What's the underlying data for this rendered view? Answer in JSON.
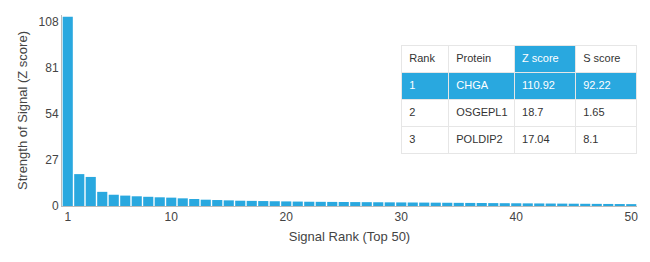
{
  "chart_data": {
    "type": "bar",
    "x": [
      1,
      2,
      3,
      4,
      5,
      6,
      7,
      8,
      9,
      10,
      11,
      12,
      13,
      14,
      15,
      16,
      17,
      18,
      19,
      20,
      21,
      22,
      23,
      24,
      25,
      26,
      27,
      28,
      29,
      30,
      31,
      32,
      33,
      34,
      35,
      36,
      37,
      38,
      39,
      40,
      41,
      42,
      43,
      44,
      45,
      46,
      47,
      48,
      49,
      50
    ],
    "values": [
      110.92,
      18.7,
      17.04,
      8.3,
      6.6,
      6.1,
      5.7,
      5.4,
      5.1,
      4.9,
      4.5,
      4.1,
      3.7,
      3.5,
      3.3,
      3.1,
      3.0,
      2.9,
      2.8,
      2.7,
      2.6,
      2.5,
      2.45,
      2.4,
      2.35,
      2.3,
      2.25,
      2.2,
      2.15,
      2.1,
      2.05,
      2.0,
      1.95,
      1.9,
      1.85,
      1.8,
      1.75,
      1.7,
      1.65,
      1.6,
      1.55,
      1.5,
      1.45,
      1.4,
      1.35,
      1.3,
      1.25,
      1.2,
      1.15,
      1.1
    ],
    "color": "#29a8df",
    "xlim": [
      0.5,
      50.5
    ],
    "xticks": [
      1,
      10,
      20,
      30,
      40,
      50
    ],
    "ylim": [
      0,
      112
    ],
    "yticks": [
      0,
      27,
      54,
      81,
      108
    ],
    "xlabel": "Signal Rank (Top 50)",
    "ylabel": "Strength of Signal (Z score)",
    "grid": false,
    "table": {
      "header": [
        "Rank",
        "Protein",
        "Z score",
        "S score"
      ],
      "rows": [
        [
          1,
          "CHGA",
          110.92,
          92.22
        ],
        [
          2,
          "OSGEPL1",
          18.7,
          1.65
        ],
        [
          3,
          "POLDIP2",
          17.04,
          8.1
        ]
      ]
    }
  }
}
